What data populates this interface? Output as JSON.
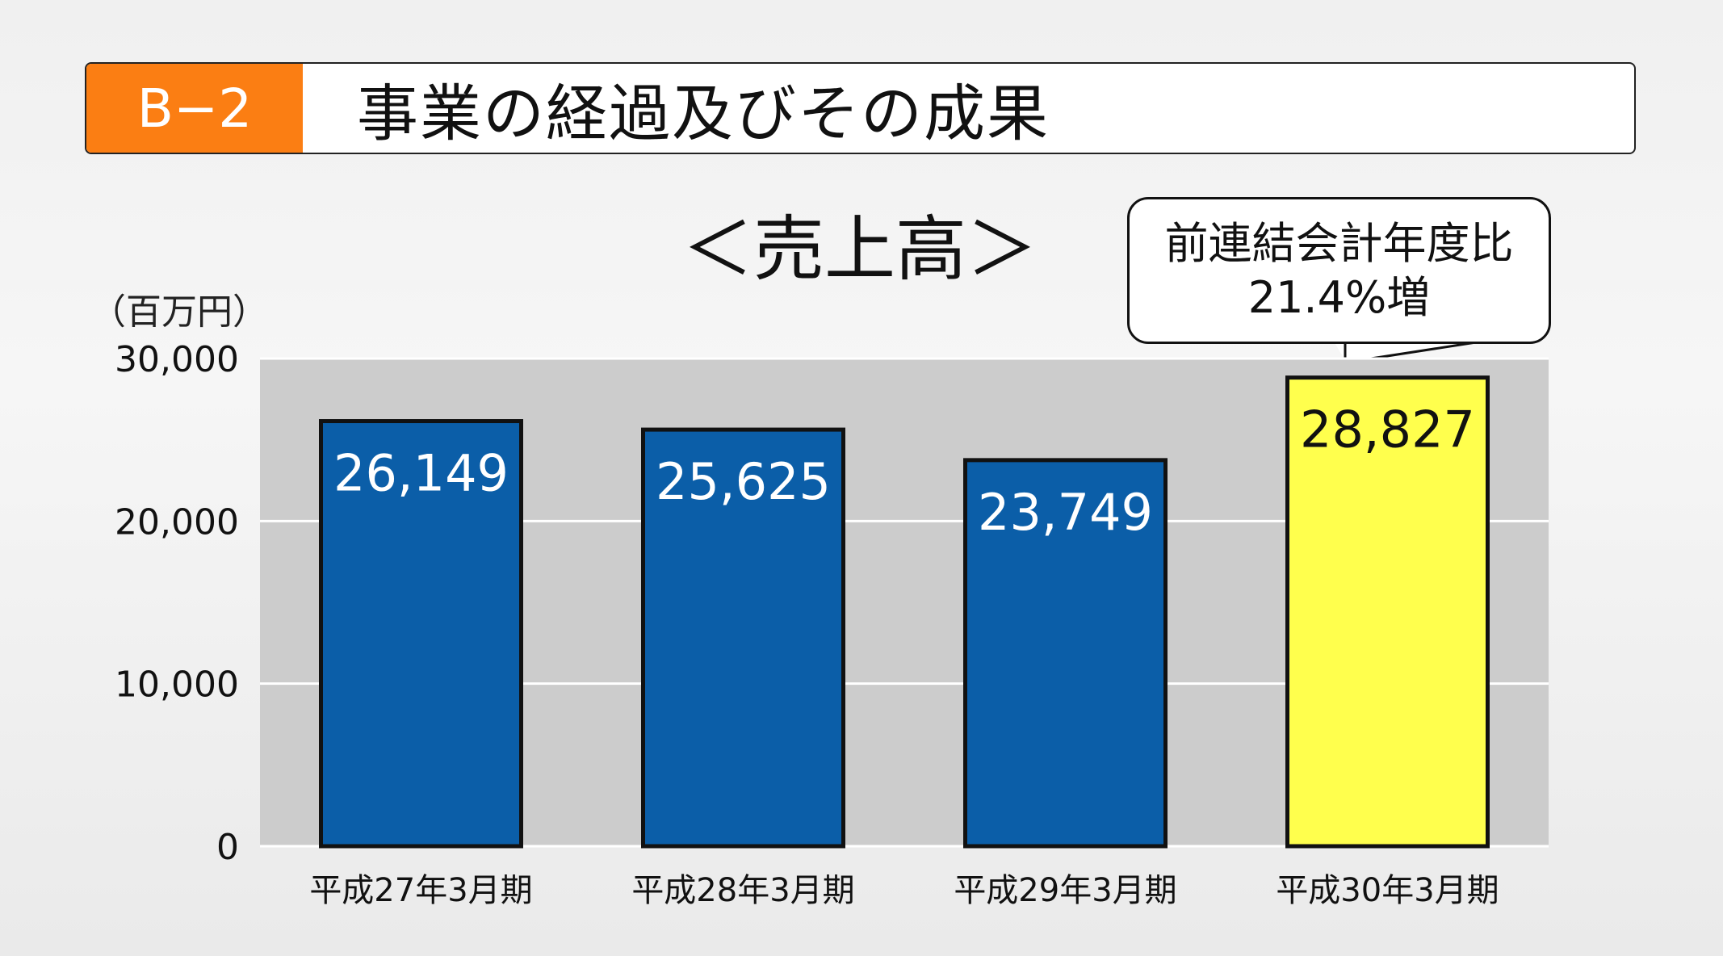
{
  "header": {
    "badge": "B−2",
    "title": "事業の経過及びその成果"
  },
  "callout": {
    "line1": "前連結会計年度比",
    "line2": "21.4%増"
  },
  "colors": {
    "bar": "#0b5ea8",
    "highlight_bar": "#ffff4d",
    "plot_bg": "#cccccc",
    "header_badge": "#fb7e13"
  },
  "chart_data": {
    "type": "bar",
    "title": "＜売上高＞",
    "unit_label": "（百万円）",
    "categories": [
      "平成27年3月期",
      "平成28年3月期",
      "平成29年3月期",
      "平成30年3月期"
    ],
    "values": [
      26149,
      25625,
      23749,
      28827
    ],
    "value_labels": [
      "26,149",
      "25,625",
      "23,749",
      "28,827"
    ],
    "highlight_index": 3,
    "ylim": [
      0,
      30000
    ],
    "yticks": [
      0,
      10000,
      20000,
      30000
    ],
    "ytick_labels": [
      "0",
      "10,000",
      "20,000",
      "30,000"
    ],
    "grid": true
  }
}
